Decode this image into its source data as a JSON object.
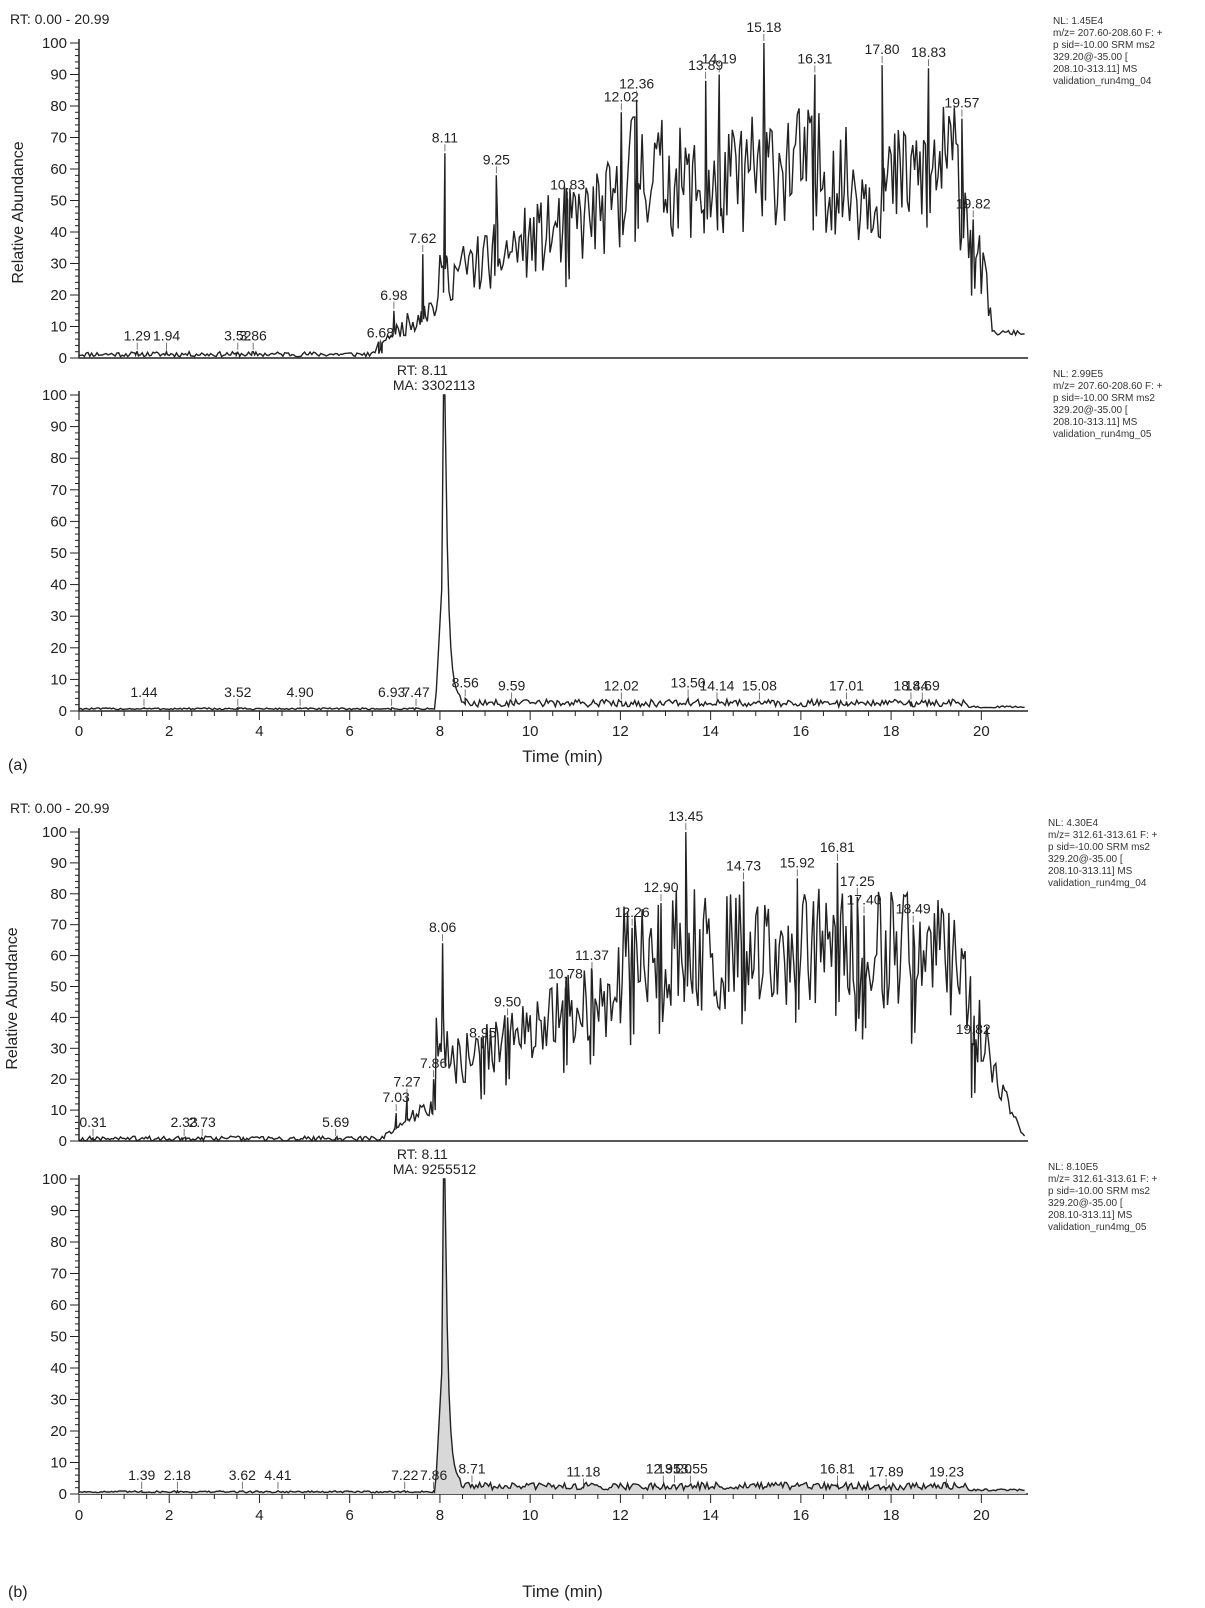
{
  "chart_data": [
    {
      "type": "line",
      "panel": "(a)",
      "range_label": "RT: 0.00 - 20.99",
      "ylabel": "Relative Abundance",
      "xlabel": "Time (min)",
      "xlim": [
        0,
        20.99
      ],
      "ylim": [
        0,
        100
      ],
      "x_ticks": [
        "0",
        "2",
        "4",
        "6",
        "8",
        "10",
        "12",
        "14",
        "16",
        "18",
        "20"
      ],
      "y_ticks": [
        "0",
        "10",
        "20",
        "30",
        "40",
        "50",
        "60",
        "70",
        "80",
        "90",
        "100"
      ],
      "traces": [
        {
          "info": [
            "NL: 1.45E4",
            "m/z= 207.60-208.60 F: +",
            "p sid=-10.00 SRM ms2",
            "329.20@-35.00 [",
            "208.10-313.11] MS",
            "validation_run4mg_04"
          ],
          "peaks": [
            {
              "x": 1.29,
              "y": 2,
              "label": "1.29"
            },
            {
              "x": 1.94,
              "y": 2,
              "label": "1.94"
            },
            {
              "x": 3.52,
              "y": 2,
              "label": "3.52"
            },
            {
              "x": 3.86,
              "y": 2,
              "label": "3.86"
            },
            {
              "x": 6.68,
              "y": 3,
              "label": "6.68"
            },
            {
              "x": 6.98,
              "y": 15,
              "label": "6.98"
            },
            {
              "x": 7.62,
              "y": 33,
              "label": "7.62"
            },
            {
              "x": 8.11,
              "y": 65,
              "label": "8.11"
            },
            {
              "x": 9.25,
              "y": 58,
              "label": "9.25"
            },
            {
              "x": 10.83,
              "y": 50,
              "label": "10.83"
            },
            {
              "x": 12.02,
              "y": 78,
              "label": "12.02"
            },
            {
              "x": 12.36,
              "y": 82,
              "label": "12.36"
            },
            {
              "x": 13.89,
              "y": 88,
              "label": "13.89"
            },
            {
              "x": 14.19,
              "y": 90,
              "label": "14.19"
            },
            {
              "x": 15.18,
              "y": 100,
              "label": "15.18"
            },
            {
              "x": 16.31,
              "y": 90,
              "label": "16.31"
            },
            {
              "x": 17.8,
              "y": 93,
              "label": "17.80"
            },
            {
              "x": 18.83,
              "y": 92,
              "label": "18.83"
            },
            {
              "x": 19.57,
              "y": 76,
              "label": "19.57"
            },
            {
              "x": 19.82,
              "y": 44,
              "label": "19.82"
            }
          ]
        },
        {
          "info": [
            "NL: 2.99E5",
            "m/z= 207.60-208.60 F: +",
            "p sid=-10.00 SRM ms2",
            "329.20@-35.00 [",
            "208.10-313.11] MS",
            "validation_run4mg_05"
          ],
          "rt_annotation": [
            "RT: 8.11",
            "MA: 3302113"
          ],
          "main_peak": {
            "x": 8.11,
            "y": 100
          },
          "peaks": [
            {
              "x": 1.44,
              "y": 1,
              "label": "1.44"
            },
            {
              "x": 3.52,
              "y": 1,
              "label": "3.52"
            },
            {
              "x": 4.9,
              "y": 1,
              "label": "4.90"
            },
            {
              "x": 6.93,
              "y": 1,
              "label": "6.93"
            },
            {
              "x": 7.47,
              "y": 1,
              "label": "7.47"
            },
            {
              "x": 8.56,
              "y": 4,
              "label": "8.56"
            },
            {
              "x": 9.59,
              "y": 3,
              "label": "9.59"
            },
            {
              "x": 12.02,
              "y": 3,
              "label": "12.02"
            },
            {
              "x": 13.5,
              "y": 4,
              "label": "13.50"
            },
            {
              "x": 14.14,
              "y": 3,
              "label": "14.14"
            },
            {
              "x": 15.08,
              "y": 3,
              "label": "15.08"
            },
            {
              "x": 17.01,
              "y": 3,
              "label": "17.01"
            },
            {
              "x": 18.44,
              "y": 3,
              "label": "18.44"
            },
            {
              "x": 18.69,
              "y": 3,
              "label": "18.69"
            }
          ]
        }
      ]
    },
    {
      "type": "line",
      "panel": "(b)",
      "range_label": "RT: 0.00 - 20.99",
      "ylabel": "Relative Abundance",
      "xlabel": "Time (min)",
      "xlim": [
        0,
        20.99
      ],
      "ylim": [
        0,
        100
      ],
      "x_ticks": [
        "0",
        "2",
        "4",
        "6",
        "8",
        "10",
        "12",
        "14",
        "16",
        "18",
        "20"
      ],
      "y_ticks": [
        "0",
        "10",
        "20",
        "30",
        "40",
        "50",
        "60",
        "70",
        "80",
        "90",
        "100"
      ],
      "traces": [
        {
          "info": [
            "NL: 4.30E4",
            "m/z= 312.61-313.61 F: +",
            "p sid=-10.00 SRM ms2",
            "329.20@-35.00 [",
            "208.10-313.11] MS",
            "validation_run4mg_04"
          ],
          "peaks": [
            {
              "x": 0.31,
              "y": 1,
              "label": "0.31"
            },
            {
              "x": 2.33,
              "y": 1,
              "label": "2.33"
            },
            {
              "x": 2.73,
              "y": 1,
              "label": "2.73"
            },
            {
              "x": 5.69,
              "y": 1,
              "label": "5.69"
            },
            {
              "x": 7.03,
              "y": 9,
              "label": "7.03"
            },
            {
              "x": 7.27,
              "y": 14,
              "label": "7.27"
            },
            {
              "x": 7.86,
              "y": 20,
              "label": "7.86"
            },
            {
              "x": 8.06,
              "y": 64,
              "label": "8.06"
            },
            {
              "x": 8.95,
              "y": 30,
              "label": "8.95"
            },
            {
              "x": 9.5,
              "y": 40,
              "label": "9.50"
            },
            {
              "x": 10.78,
              "y": 49,
              "label": "10.78"
            },
            {
              "x": 11.37,
              "y": 55,
              "label": "11.37"
            },
            {
              "x": 12.26,
              "y": 69,
              "label": "12.26"
            },
            {
              "x": 12.9,
              "y": 77,
              "label": "12.90"
            },
            {
              "x": 13.45,
              "y": 100,
              "label": "13.45"
            },
            {
              "x": 14.73,
              "y": 84,
              "label": "14.73"
            },
            {
              "x": 15.92,
              "y": 85,
              "label": "15.92"
            },
            {
              "x": 16.81,
              "y": 90,
              "label": "16.81"
            },
            {
              "x": 17.25,
              "y": 79,
              "label": "17.25"
            },
            {
              "x": 17.4,
              "y": 73,
              "label": "17.40"
            },
            {
              "x": 18.49,
              "y": 70,
              "label": "18.49"
            },
            {
              "x": 19.82,
              "y": 31,
              "label": "19.82"
            }
          ]
        },
        {
          "info": [
            "NL: 8.10E5",
            "m/z= 312.61-313.61 F: +",
            "p sid=-10.00 SRM ms2",
            "329.20@-35.00 [",
            "208.10-313.11] MS",
            "validation_run4mg_05"
          ],
          "rt_annotation": [
            "RT: 8.11",
            "MA: 9255512"
          ],
          "main_peak": {
            "x": 8.11,
            "y": 100
          },
          "peaks": [
            {
              "x": 1.39,
              "y": 1,
              "label": "1.39"
            },
            {
              "x": 2.18,
              "y": 1,
              "label": "2.18"
            },
            {
              "x": 3.62,
              "y": 1,
              "label": "3.62"
            },
            {
              "x": 4.41,
              "y": 1,
              "label": "4.41"
            },
            {
              "x": 7.22,
              "y": 1,
              "label": "7.22"
            },
            {
              "x": 7.86,
              "y": 1,
              "label": "7.86"
            },
            {
              "x": 8.71,
              "y": 3,
              "label": "8.71"
            },
            {
              "x": 11.18,
              "y": 2,
              "label": "11.18"
            },
            {
              "x": 12.95,
              "y": 3,
              "label": "12.95"
            },
            {
              "x": 13.2,
              "y": 3,
              "label": "13.20"
            },
            {
              "x": 13.55,
              "y": 3,
              "label": "13.55"
            },
            {
              "x": 16.81,
              "y": 3,
              "label": "16.81"
            },
            {
              "x": 17.89,
              "y": 2,
              "label": "17.89"
            },
            {
              "x": 19.23,
              "y": 2,
              "label": "19.23"
            }
          ]
        }
      ]
    }
  ]
}
